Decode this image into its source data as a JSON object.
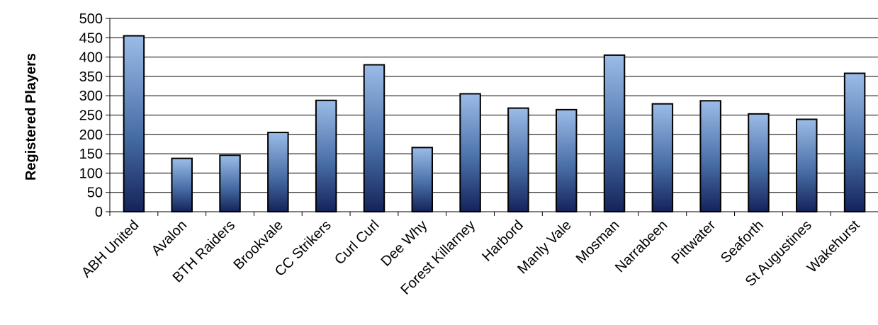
{
  "chart_data": {
    "type": "bar",
    "title": "",
    "xlabel": "",
    "ylabel": "Registered Players",
    "ylim": [
      0,
      500
    ],
    "yticks": [
      0,
      50,
      100,
      150,
      200,
      250,
      300,
      350,
      400,
      450,
      500
    ],
    "grid": true,
    "legend": "none",
    "categories": [
      "ABH United",
      "Avalon",
      "BTH Raiders",
      "Brookvale",
      "CC Strikers",
      "Curl Curl",
      "Dee Why",
      "Forest Killarney",
      "Harbord",
      "Manly Vale",
      "Mosman",
      "Narrabeen",
      "Pittwater",
      "Seaforth",
      "St Augustines",
      "Wakehurst"
    ],
    "values": [
      455,
      138,
      146,
      205,
      288,
      380,
      166,
      305,
      268,
      264,
      405,
      279,
      287,
      253,
      239,
      358
    ],
    "colors": {
      "bar_top": "#9bbce8",
      "bar_mid": "#4a70a8",
      "bar_bottom": "#14235a",
      "bar_outline": "#000000",
      "grid": "#000000",
      "axis": "#000000"
    }
  }
}
